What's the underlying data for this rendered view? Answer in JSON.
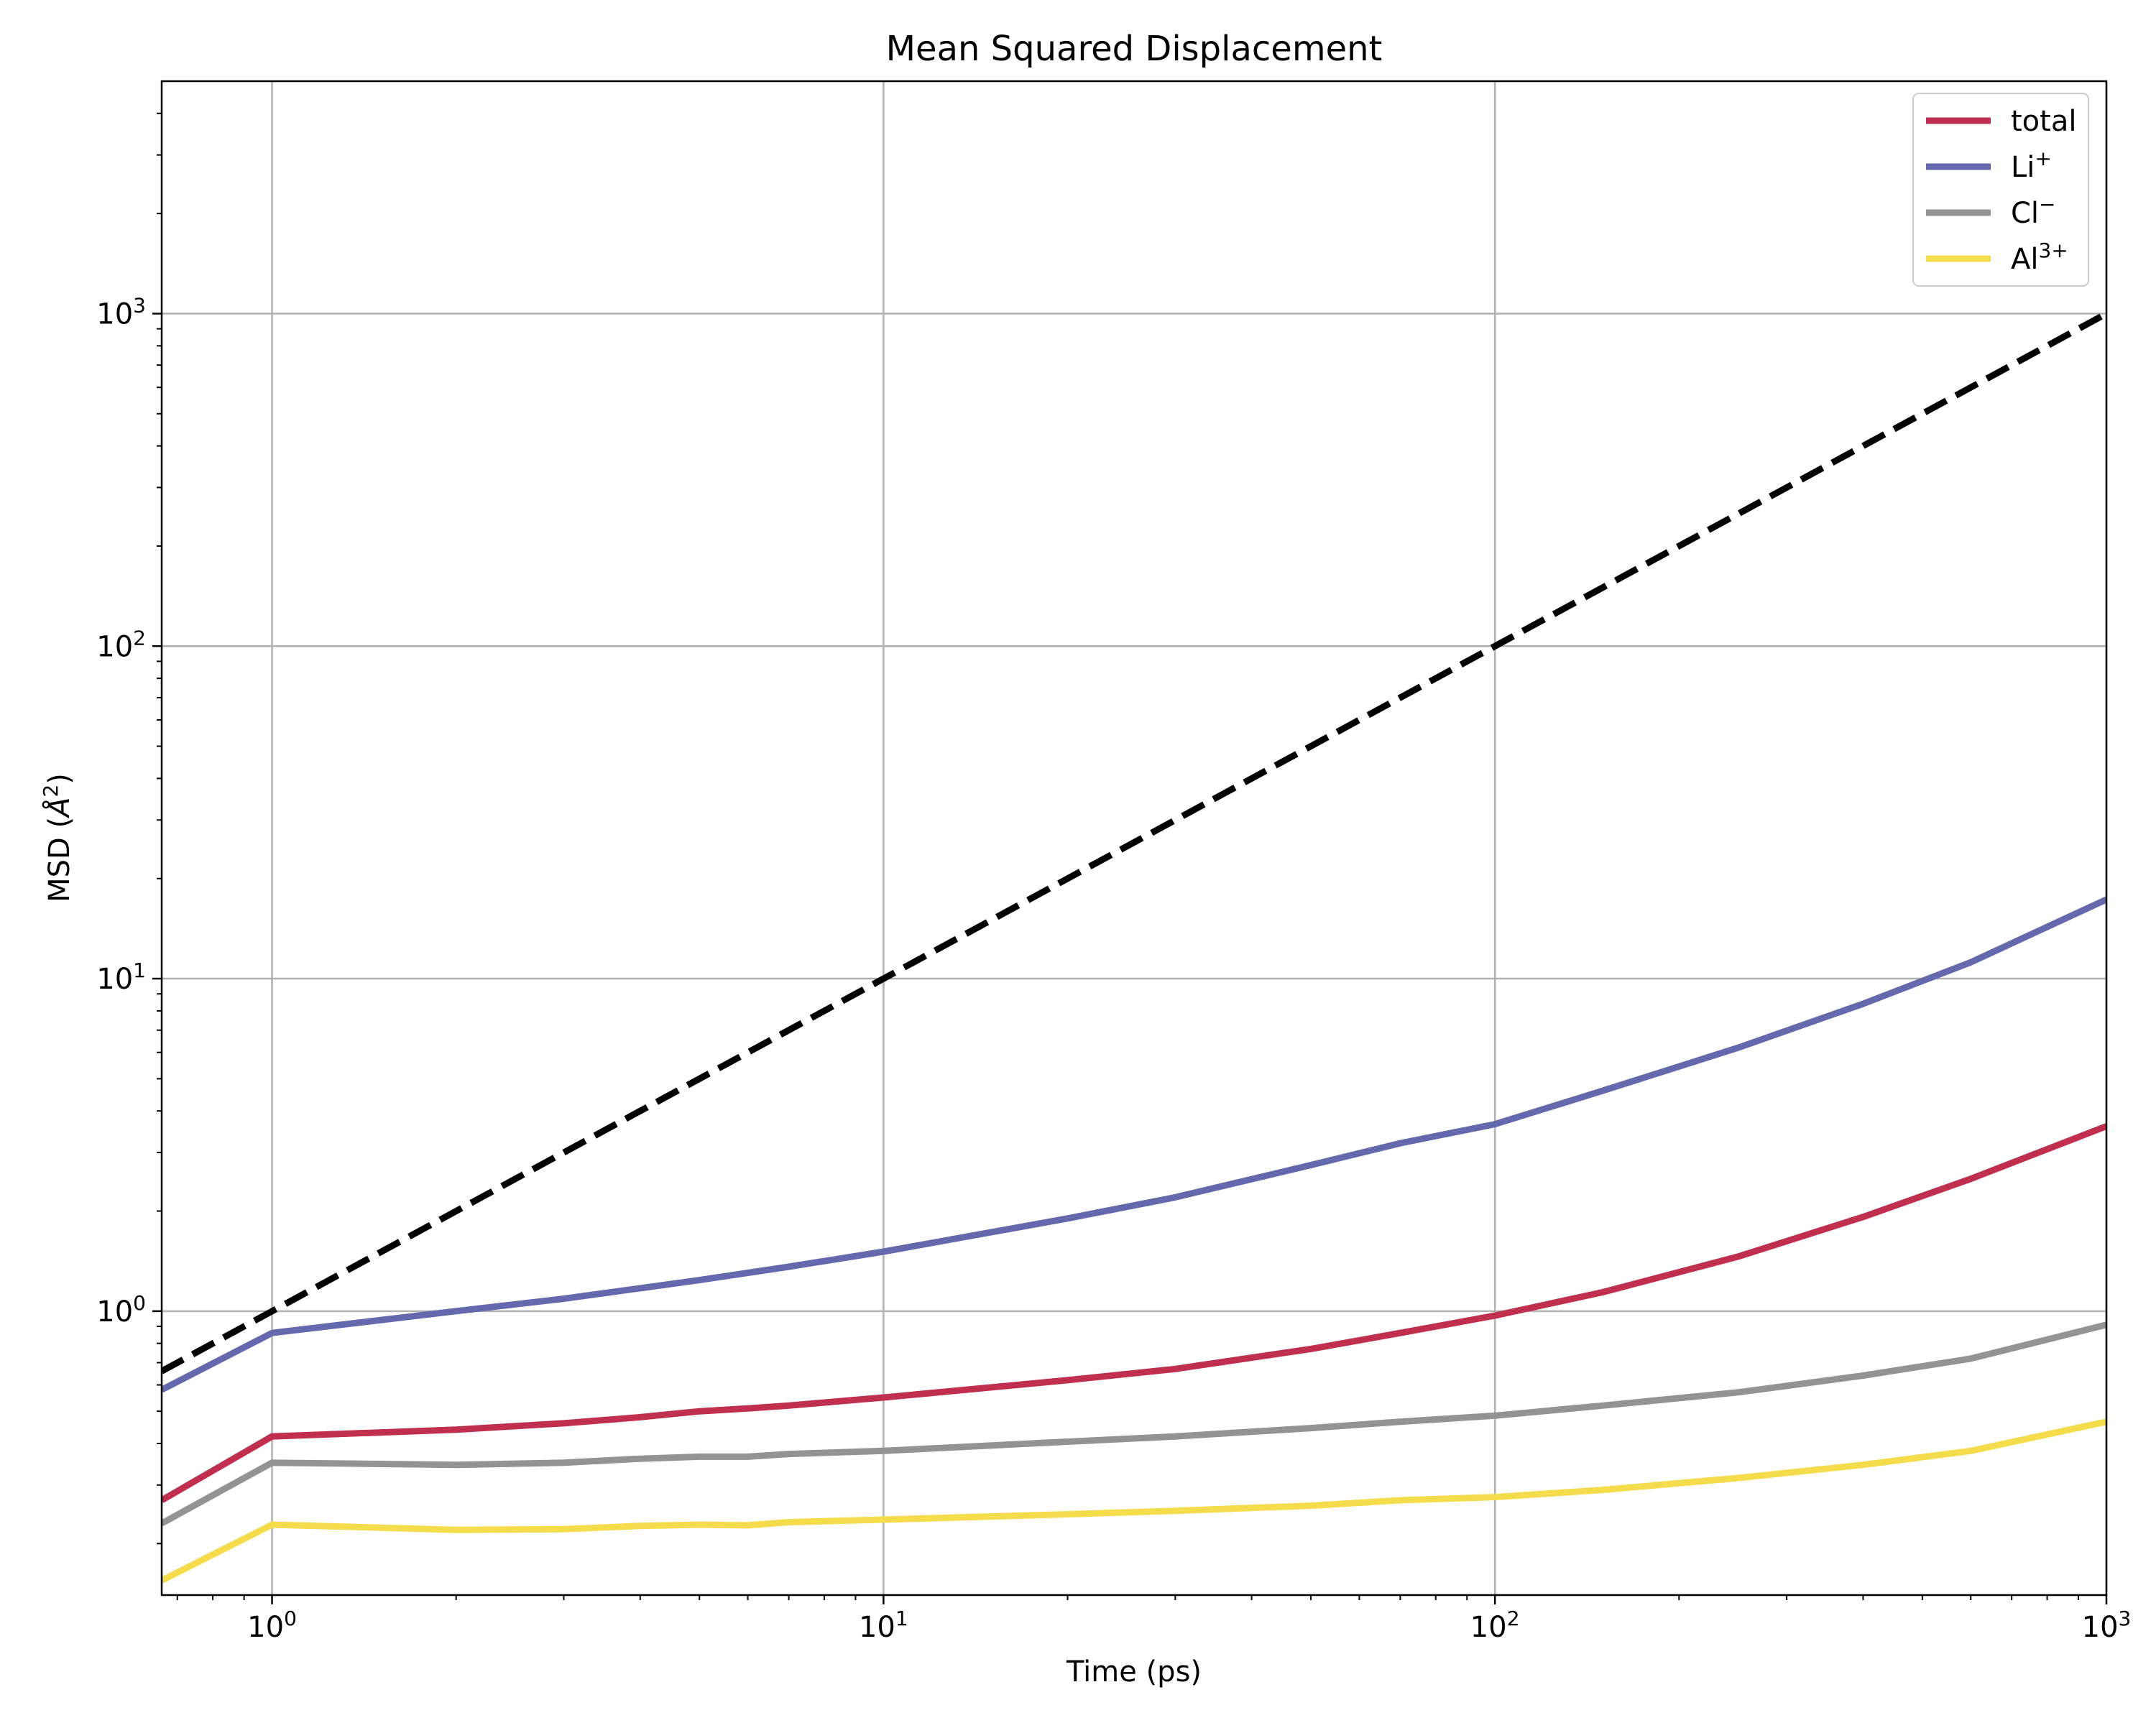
{
  "chart_data": {
    "type": "line",
    "title": "Mean Squared Displacement",
    "xlabel": "Time (ps)",
    "ylabel": "MSD (Å²)",
    "ylabel_parts": {
      "base": "MSD (",
      "unit": "Å",
      "sup": "2",
      "close": ")"
    },
    "xscale": "log",
    "yscale": "log",
    "xlim": [
      0.66,
      1000
    ],
    "ylim": [
      0.14,
      5000
    ],
    "grid": true,
    "legend": "top-right",
    "x_ticks": [
      {
        "base": "10",
        "exp": "0",
        "value": 1
      },
      {
        "base": "10",
        "exp": "1",
        "value": 10
      },
      {
        "base": "10",
        "exp": "2",
        "value": 100
      },
      {
        "base": "10",
        "exp": "3",
        "value": 1000
      }
    ],
    "y_ticks": [
      {
        "base": "10",
        "exp": "0",
        "value": 1
      },
      {
        "base": "10",
        "exp": "1",
        "value": 10
      },
      {
        "base": "10",
        "exp": "2",
        "value": 100
      },
      {
        "base": "10",
        "exp": "3",
        "value": 1000
      }
    ],
    "reference_line": {
      "style": "dashed",
      "color": "#000000",
      "x": [
        0.66,
        1000
      ],
      "y": [
        0.66,
        1000
      ]
    },
    "series": [
      {
        "name": "total",
        "name_parts": {
          "base": "total",
          "sup": ""
        },
        "color": "#c0304e",
        "x": [
          0.66,
          1,
          2,
          3,
          4,
          5,
          6,
          7,
          10,
          20,
          30,
          50,
          70,
          100,
          150,
          250,
          400,
          600,
          1000
        ],
        "y": [
          0.27,
          0.42,
          0.44,
          0.46,
          0.48,
          0.5,
          0.51,
          0.52,
          0.55,
          0.62,
          0.67,
          0.77,
          0.86,
          0.97,
          1.14,
          1.46,
          1.92,
          2.5,
          3.6
        ]
      },
      {
        "name": "Li⁺",
        "name_parts": {
          "base": "Li",
          "sup": "+"
        },
        "color": "#6468ad",
        "x": [
          0.66,
          1,
          2,
          3,
          5,
          7,
          10,
          20,
          30,
          50,
          70,
          100,
          150,
          250,
          400,
          600,
          1000
        ],
        "y": [
          0.58,
          0.86,
          1.0,
          1.09,
          1.24,
          1.36,
          1.51,
          1.9,
          2.2,
          2.75,
          3.2,
          3.65,
          4.6,
          6.2,
          8.4,
          11.2,
          17.3
        ]
      },
      {
        "name": "Cl⁻",
        "name_parts": {
          "base": "Cl",
          "sup": "−"
        },
        "color": "#939393",
        "x": [
          0.66,
          1,
          2,
          3,
          4,
          5,
          6,
          7,
          10,
          20,
          30,
          50,
          70,
          100,
          150,
          250,
          400,
          600,
          1000
        ],
        "y": [
          0.23,
          0.35,
          0.345,
          0.35,
          0.36,
          0.365,
          0.365,
          0.372,
          0.38,
          0.405,
          0.42,
          0.445,
          0.465,
          0.485,
          0.52,
          0.57,
          0.64,
          0.72,
          0.91
        ]
      },
      {
        "name": "Al³⁺",
        "name_parts": {
          "base": "Al",
          "sup": "3+"
        },
        "color": "#f5dc4c",
        "x": [
          0.66,
          1,
          2,
          3,
          4,
          5,
          6,
          7,
          10,
          20,
          30,
          50,
          70,
          100,
          150,
          250,
          400,
          600,
          1000
        ],
        "y": [
          0.155,
          0.228,
          0.22,
          0.221,
          0.226,
          0.228,
          0.227,
          0.232,
          0.236,
          0.245,
          0.251,
          0.26,
          0.27,
          0.276,
          0.29,
          0.315,
          0.345,
          0.38,
          0.465
        ]
      }
    ]
  }
}
